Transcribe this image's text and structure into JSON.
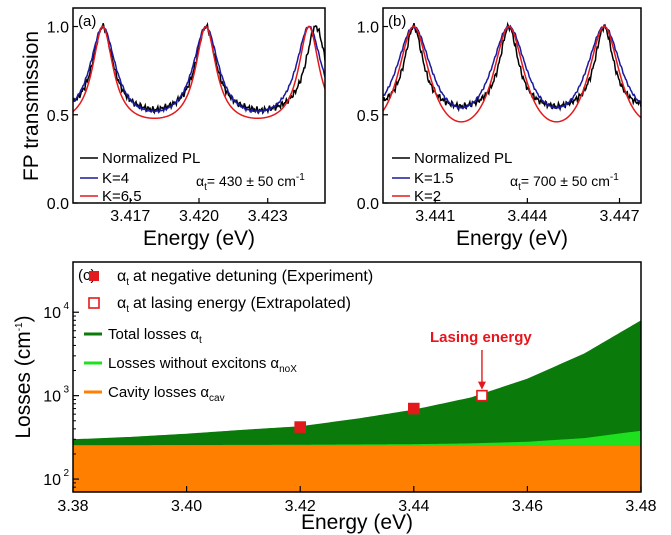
{
  "chart_data": [
    {
      "panel": "(a)",
      "type": "line",
      "ylabel": "FP transmission",
      "xlabel": "Energy (eV)",
      "xlim": [
        3.4145,
        3.4255
      ],
      "ylim": [
        0.0,
        1.0
      ],
      "xticks": [
        "3.417",
        "3.420",
        "3.423"
      ],
      "yticks": [
        "0.0",
        "0.5",
        "1.0"
      ],
      "peaks": [
        3.4158,
        3.4203,
        3.4251
      ],
      "series": [
        {
          "name": "Normalized PL",
          "color": "#000000",
          "K": null,
          "baseline": 0.5,
          "noise": 0.02
        },
        {
          "name": "K=4",
          "color": "#1a1a9e",
          "K": 4,
          "baseline": 0.52,
          "noise": 0.008
        },
        {
          "name": "K=6.5",
          "color": "#e31a1c",
          "K": 6.5,
          "baseline": 0.48,
          "noise": 0
        }
      ],
      "annotation": {
        "alpha": "α",
        "sub": "t",
        "rest": "= 430 ± 50 cm",
        "sup": "-1"
      }
    },
    {
      "panel": "(b)",
      "type": "line",
      "ylabel": "",
      "xlabel": "Energy (eV)",
      "xlim": [
        3.4393,
        3.4477
      ],
      "ylim": [
        0.0,
        1.0
      ],
      "xticks": [
        "3.441",
        "3.444",
        "3.447"
      ],
      "yticks": [
        "0.0",
        "0.5",
        "1.0"
      ],
      "peaks": [
        3.4403,
        3.4434,
        3.4465
      ],
      "series": [
        {
          "name": "Normalized PL",
          "color": "#000000",
          "K": null,
          "baseline": 0.52,
          "noise": 0.02
        },
        {
          "name": "K=1.5",
          "color": "#1a1a9e",
          "K": 1.5,
          "baseline": 0.54,
          "noise": 0.008
        },
        {
          "name": "K=2",
          "color": "#e31a1c",
          "K": 2,
          "baseline": 0.46,
          "noise": 0
        }
      ],
      "annotation": {
        "alpha": "α",
        "sub": "t",
        "rest": "= 700 ± 50 cm",
        "sup": "-1"
      }
    },
    {
      "panel": "(c)",
      "type": "area",
      "ylabel": "Losses (cm",
      "ylabel_sup": "-1",
      "ylabel_end": ")",
      "xlabel": "Energy (eV)",
      "xlim": [
        3.38,
        3.48
      ],
      "ylim_log": [
        70,
        40000
      ],
      "log_scale": true,
      "xticks": [
        "3.38",
        "3.40",
        "3.42",
        "3.44",
        "3.46",
        "3.48"
      ],
      "yticks": [
        {
          "base": "10",
          "exp": "2",
          "value": 100
        },
        {
          "base": "10",
          "exp": "3",
          "value": 1000
        },
        {
          "base": "10",
          "exp": "4",
          "value": 10000
        }
      ],
      "cavity_loss": 250,
      "areas": [
        {
          "name": "Total losses",
          "symbol": "α",
          "sub": "t",
          "color": "#0a7a0a",
          "x": [
            3.38,
            3.39,
            3.4,
            3.41,
            3.42,
            3.43,
            3.44,
            3.45,
            3.46,
            3.47,
            3.48
          ],
          "y": [
            300,
            320,
            350,
            390,
            430,
            530,
            680,
            950,
            1600,
            3200,
            8000
          ]
        },
        {
          "name": "Losses without excitons",
          "symbol": "α",
          "sub": "noX",
          "color": "#1ee01e",
          "x": [
            3.38,
            3.4,
            3.42,
            3.44,
            3.45,
            3.46,
            3.47,
            3.48
          ],
          "y": [
            255,
            256,
            258,
            262,
            268,
            280,
            310,
            380
          ]
        },
        {
          "name": "Cavity losses",
          "symbol": "α",
          "sub": "cav",
          "color": "#ff8000",
          "x": [
            3.38,
            3.48
          ],
          "y": [
            250,
            250
          ]
        }
      ],
      "points": [
        {
          "name": "at negative detuning (Experiment)",
          "symbol": "α",
          "sub": "t",
          "filled": true,
          "color": "#e31a1c",
          "x": [
            3.42,
            3.44
          ],
          "y": [
            420,
            700
          ]
        },
        {
          "name": "at lasing energy (Extrapolated)",
          "symbol": "α",
          "sub": "t",
          "filled": false,
          "color": "#e31a1c",
          "x": [
            3.452
          ],
          "y": [
            1000
          ]
        }
      ],
      "annotation": "Lasing energy"
    }
  ]
}
